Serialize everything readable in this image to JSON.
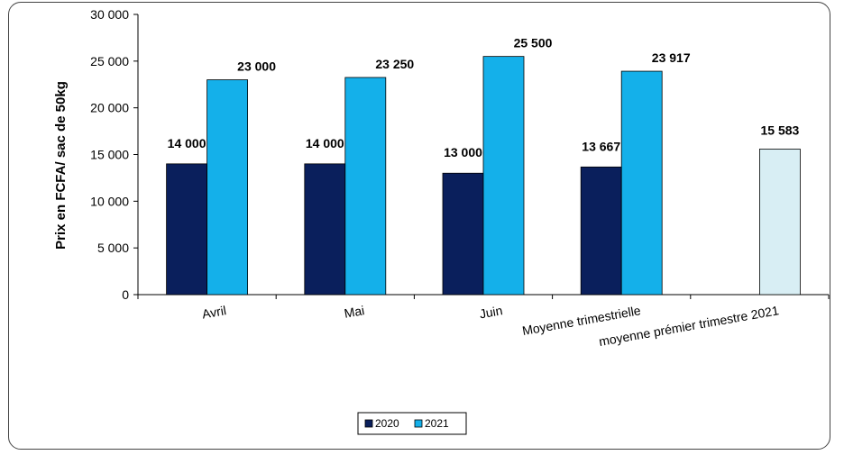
{
  "chart_data": {
    "type": "bar",
    "title": "",
    "xlabel": "",
    "ylabel": "Prix en FCFA/ sac de 50kg",
    "ylim": [
      0,
      30000
    ],
    "yticks": [
      0,
      5000,
      10000,
      15000,
      20000,
      25000,
      30000
    ],
    "ytick_labels": [
      "0",
      "5 000",
      "10 000",
      "15 000",
      "20 000",
      "25 000",
      "30 000"
    ],
    "grid": false,
    "legend_position": "bottom",
    "categories": [
      "Avril",
      "Mai",
      "Juin",
      "Moyenne trimestrielle",
      "moyenne prémier trimestre 2021"
    ],
    "series": [
      {
        "name": "2020",
        "color": "#0a1f5c",
        "values": [
          14000,
          14000,
          13000,
          13667,
          null
        ],
        "labels": [
          "14 000",
          "14 000",
          "13 000",
          "13 667",
          ""
        ]
      },
      {
        "name": "2021",
        "color": "#14b0ea",
        "values": [
          23000,
          23250,
          25500,
          23917,
          null
        ],
        "labels": [
          "23 000",
          "23 250",
          "25 500",
          "23 917",
          ""
        ]
      }
    ],
    "extra_bar": {
      "category_index": 4,
      "value": 15583,
      "label": "15 583",
      "color": "#d8eef4"
    }
  }
}
